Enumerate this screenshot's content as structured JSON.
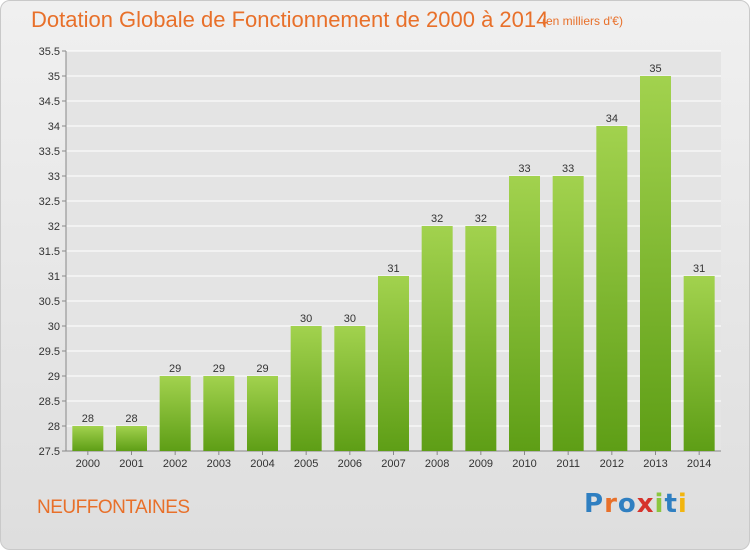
{
  "header": {
    "title": "Dotation Globale de Fonctionnement de 2000 à 2014",
    "subtitle": "(en milliers d'€)"
  },
  "footer": {
    "town": "NEUFFONTAINES",
    "logo_letters": [
      {
        "char": "P",
        "color": "#2f7fc1"
      },
      {
        "char": "r",
        "color": "#e8702a"
      },
      {
        "char": "o",
        "color": "#2f7fc1"
      },
      {
        "char": "x",
        "color": "#d6332c"
      },
      {
        "char": "i",
        "color": "#8cc63f"
      },
      {
        "char": "t",
        "color": "#2f7fc1"
      },
      {
        "char": "i",
        "color": "#f2b50f"
      }
    ]
  },
  "colors": {
    "title": "#e8702a",
    "bar_top": "#a2d24e",
    "bar_bottom": "#5e9e16",
    "grid": "#ffffff"
  },
  "chart_data": {
    "type": "bar",
    "title": "Dotation Globale de Fonctionnement de 2000 à 2014",
    "subtitle": "(en milliers d'€)",
    "categories": [
      "2000",
      "2001",
      "2002",
      "2003",
      "2004",
      "2005",
      "2006",
      "2007",
      "2008",
      "2009",
      "2010",
      "2011",
      "2012",
      "2013",
      "2014"
    ],
    "values": [
      28,
      28,
      29,
      29,
      29,
      30,
      30,
      31,
      32,
      32,
      33,
      33,
      34,
      35,
      31
    ],
    "ylim": [
      27.5,
      35.5
    ],
    "yticks": [
      "27.5",
      "28",
      "28.5",
      "29",
      "29.5",
      "30",
      "30.5",
      "31",
      "31.5",
      "32",
      "32.5",
      "33",
      "33.5",
      "34",
      "34.5",
      "35",
      "35.5"
    ],
    "grid": true,
    "xlabel": "",
    "ylabel": ""
  }
}
